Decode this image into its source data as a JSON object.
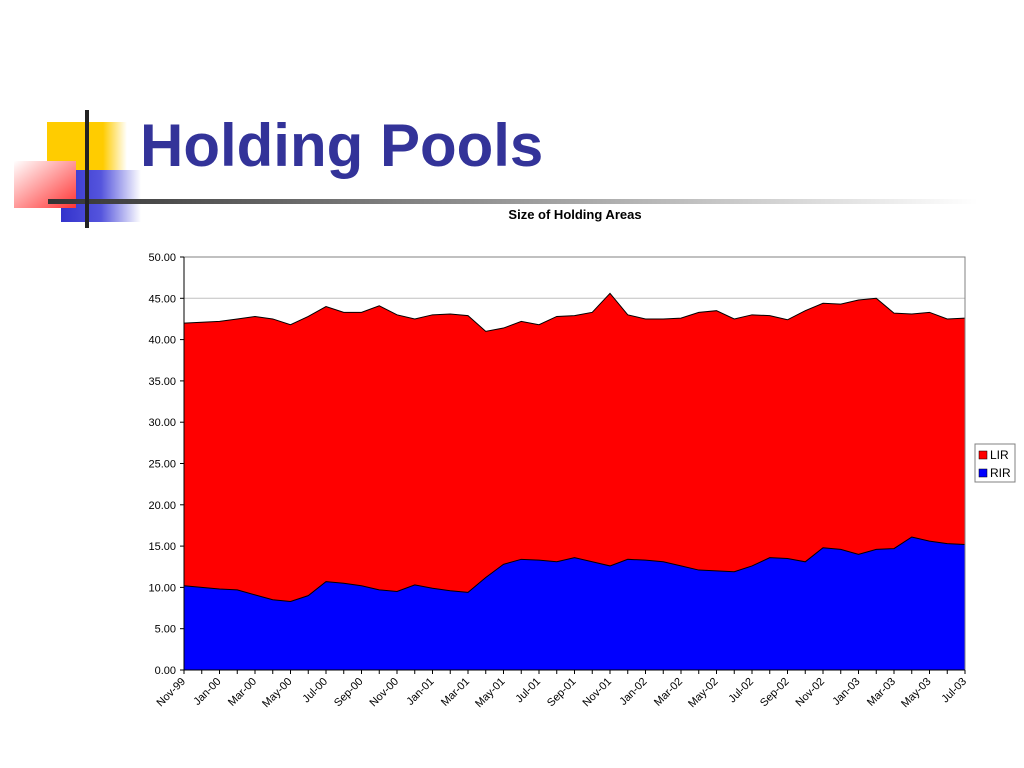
{
  "slide": {
    "title": "Holding Pools"
  },
  "colors": {
    "title": "#333399",
    "lir": "#ff0000",
    "rir": "#0000ff",
    "deco_yellow": "#ffcc00",
    "deco_red": "#ff6666",
    "deco_blue": "#3333cc"
  },
  "chart_data": {
    "type": "area",
    "stacked": true,
    "title": "Size of Holding Areas",
    "xlabel": "",
    "ylabel": "",
    "ylim": [
      0,
      50
    ],
    "yticks": [
      "0.00",
      "5.00",
      "10.00",
      "15.00",
      "20.00",
      "25.00",
      "30.00",
      "35.00",
      "40.00",
      "45.00",
      "50.00"
    ],
    "x_tick_labels": [
      "Nov-99",
      "Jan-00",
      "Mar-00",
      "May-00",
      "Jul-00",
      "Sep-00",
      "Nov-00",
      "Jan-01",
      "Mar-01",
      "May-01",
      "Jul-01",
      "Sep-01",
      "Nov-01",
      "Jan-02",
      "Mar-02",
      "May-02",
      "Jul-02",
      "Sep-02",
      "Nov-02",
      "Jan-03",
      "Mar-03",
      "May-03",
      "Jul-03"
    ],
    "x": [
      "Nov-99",
      "Dec-99",
      "Jan-00",
      "Feb-00",
      "Mar-00",
      "Apr-00",
      "May-00",
      "Jun-00",
      "Jul-00",
      "Aug-00",
      "Sep-00",
      "Oct-00",
      "Nov-00",
      "Dec-00",
      "Jan-01",
      "Feb-01",
      "Mar-01",
      "Apr-01",
      "May-01",
      "Jun-01",
      "Jul-01",
      "Aug-01",
      "Sep-01",
      "Oct-01",
      "Nov-01",
      "Dec-01",
      "Jan-02",
      "Feb-02",
      "Mar-02",
      "Apr-02",
      "May-02",
      "Jun-02",
      "Jul-02",
      "Aug-02",
      "Sep-02",
      "Oct-02",
      "Nov-02",
      "Dec-02",
      "Jan-03",
      "Feb-03",
      "Mar-03",
      "Apr-03",
      "May-03",
      "Jun-03",
      "Jul-03"
    ],
    "series": [
      {
        "name": "RIR",
        "color": "#0000ff",
        "values": [
          10.2,
          10.0,
          9.8,
          9.7,
          9.1,
          8.5,
          8.3,
          9.0,
          10.7,
          10.5,
          10.2,
          9.7,
          9.5,
          10.3,
          9.9,
          9.6,
          9.4,
          11.2,
          12.8,
          13.4,
          13.3,
          13.1,
          13.6,
          13.1,
          12.6,
          13.4,
          13.3,
          13.1,
          12.6,
          12.1,
          12.0,
          11.9,
          12.6,
          13.6,
          13.5,
          13.1,
          14.8,
          14.6,
          14.0,
          14.6,
          14.7,
          16.1,
          15.6,
          15.3,
          15.2
        ]
      },
      {
        "name": "LIR",
        "color": "#ff0000",
        "values": [
          31.8,
          32.1,
          32.4,
          32.8,
          33.7,
          34.0,
          33.5,
          33.8,
          33.3,
          32.8,
          33.1,
          34.4,
          33.5,
          32.2,
          33.1,
          33.5,
          33.5,
          29.8,
          28.6,
          28.8,
          28.5,
          29.7,
          29.3,
          30.2,
          33.0,
          29.6,
          29.2,
          29.4,
          30.0,
          31.2,
          31.5,
          30.6,
          30.4,
          29.3,
          28.9,
          30.4,
          29.6,
          29.7,
          30.8,
          30.4,
          28.5,
          27.0,
          27.7,
          27.2,
          27.4
        ]
      }
    ],
    "legend": {
      "position": "right",
      "entries": [
        "LIR",
        "RIR"
      ]
    },
    "grid": {
      "horizontal": true,
      "vertical": false
    }
  }
}
